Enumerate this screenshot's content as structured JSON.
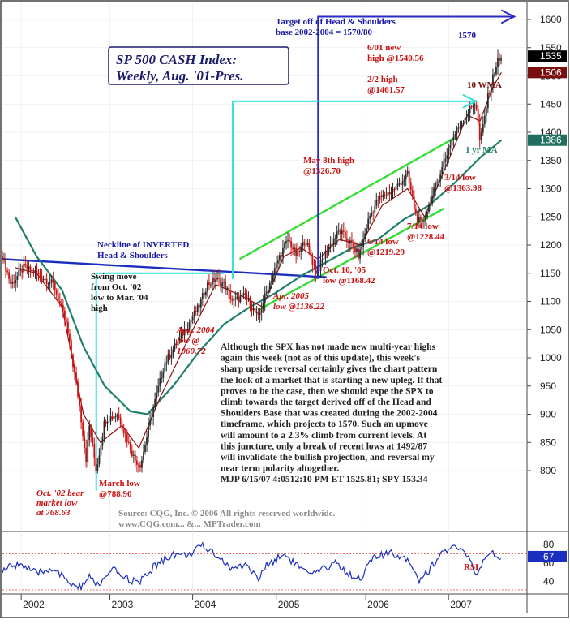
{
  "chart_data": {
    "type": "candlestick",
    "title": "SP 500 CASH Index:",
    "subtitle": "Weekly, Aug. '01-Pres.",
    "x_tick_labels": [
      "2002",
      "2003",
      "2004",
      "2005",
      "2006",
      "2007"
    ],
    "ylim": [
      750,
      1620
    ],
    "y_ticks": [
      800,
      850,
      900,
      950,
      1000,
      1050,
      1100,
      1150,
      1200,
      1250,
      1300,
      1350,
      1400,
      1450,
      1500,
      1550,
      1600
    ],
    "price_tags": [
      {
        "label": "1535",
        "value": 1535,
        "color": "#000000"
      },
      {
        "label": "1506",
        "value": 1506,
        "color": "#7a0f0f"
      },
      {
        "label": "1386",
        "value": 1386,
        "color": "#1f6f60"
      }
    ],
    "price_anchors": [
      [
        2001.6,
        1180
      ],
      [
        2001.7,
        1130
      ],
      [
        2001.85,
        1160
      ],
      [
        2002.0,
        1150
      ],
      [
        2002.2,
        1130
      ],
      [
        2002.35,
        1060
      ],
      [
        2002.5,
        920
      ],
      [
        2002.58,
        820
      ],
      [
        2002.62,
        880
      ],
      [
        2002.7,
        800
      ],
      [
        2002.8,
        890
      ],
      [
        2002.95,
        900
      ],
      [
        2003.15,
        820
      ],
      [
        2003.22,
        810
      ],
      [
        2003.35,
        900
      ],
      [
        2003.5,
        990
      ],
      [
        2003.7,
        1040
      ],
      [
        2003.9,
        1090
      ],
      [
        2004.0,
        1130
      ],
      [
        2004.1,
        1140
      ],
      [
        2004.2,
        1130
      ],
      [
        2004.3,
        1100
      ],
      [
        2004.45,
        1110
      ],
      [
        2004.6,
        1070
      ],
      [
        2004.68,
        1110
      ],
      [
        2004.85,
        1180
      ],
      [
        2004.95,
        1210
      ],
      [
        2005.05,
        1180
      ],
      [
        2005.15,
        1210
      ],
      [
        2005.28,
        1150
      ],
      [
        2005.4,
        1190
      ],
      [
        2005.55,
        1225
      ],
      [
        2005.7,
        1200
      ],
      [
        2005.78,
        1180
      ],
      [
        2005.9,
        1250
      ],
      [
        2006.0,
        1280
      ],
      [
        2006.2,
        1300
      ],
      [
        2006.35,
        1325
      ],
      [
        2006.45,
        1250
      ],
      [
        2006.52,
        1235
      ],
      [
        2006.6,
        1270
      ],
      [
        2006.75,
        1335
      ],
      [
        2006.85,
        1380
      ],
      [
        2006.95,
        1410
      ],
      [
        2007.1,
        1445
      ],
      [
        2007.15,
        1455
      ],
      [
        2007.2,
        1380
      ],
      [
        2007.3,
        1470
      ],
      [
        2007.4,
        1525
      ],
      [
        2007.45,
        1530
      ]
    ],
    "wma10_anchors": [
      [
        2001.75,
        1160
      ],
      [
        2002.0,
        1150
      ],
      [
        2002.3,
        1090
      ],
      [
        2002.55,
        900
      ],
      [
        2002.75,
        850
      ],
      [
        2003.0,
        880
      ],
      [
        2003.2,
        840
      ],
      [
        2003.45,
        930
      ],
      [
        2003.8,
        1040
      ],
      [
        2004.1,
        1130
      ],
      [
        2004.4,
        1110
      ],
      [
        2004.65,
        1090
      ],
      [
        2004.9,
        1180
      ],
      [
        2005.1,
        1195
      ],
      [
        2005.3,
        1175
      ],
      [
        2005.55,
        1210
      ],
      [
        2005.8,
        1200
      ],
      [
        2006.05,
        1270
      ],
      [
        2006.35,
        1300
      ],
      [
        2006.55,
        1250
      ],
      [
        2006.8,
        1340
      ],
      [
        2007.05,
        1430
      ],
      [
        2007.2,
        1420
      ],
      [
        2007.35,
        1480
      ],
      [
        2007.45,
        1506
      ]
    ],
    "ma1yr_anchors": [
      [
        2001.75,
        1250
      ],
      [
        2002.0,
        1180
      ],
      [
        2002.3,
        1120
      ],
      [
        2002.55,
        1020
      ],
      [
        2002.8,
        950
      ],
      [
        2003.1,
        905
      ],
      [
        2003.3,
        900
      ],
      [
        2003.6,
        950
      ],
      [
        2003.9,
        1010
      ],
      [
        2004.2,
        1060
      ],
      [
        2004.5,
        1090
      ],
      [
        2004.8,
        1115
      ],
      [
        2005.1,
        1145
      ],
      [
        2005.4,
        1170
      ],
      [
        2005.7,
        1195
      ],
      [
        2006.0,
        1210
      ],
      [
        2006.3,
        1245
      ],
      [
        2006.6,
        1270
      ],
      [
        2006.9,
        1310
      ],
      [
        2007.2,
        1355
      ],
      [
        2007.45,
        1386
      ]
    ],
    "rsi": {
      "label": "RSI",
      "ylim": [
        30,
        88
      ],
      "y_ticks": [
        80,
        60,
        40
      ],
      "value_tag": {
        "label": "67",
        "value": 67
      },
      "anchors": [
        [
          2001.6,
          52
        ],
        [
          2001.8,
          60
        ],
        [
          2002.0,
          48
        ],
        [
          2002.2,
          55
        ],
        [
          2002.35,
          40
        ],
        [
          2002.5,
          33
        ],
        [
          2002.62,
          44
        ],
        [
          2002.72,
          36
        ],
        [
          2002.9,
          52
        ],
        [
          2003.05,
          44
        ],
        [
          2003.2,
          38
        ],
        [
          2003.4,
          58
        ],
        [
          2003.6,
          70
        ],
        [
          2003.75,
          68
        ],
        [
          2003.95,
          78
        ],
        [
          2004.1,
          70
        ],
        [
          2004.3,
          52
        ],
        [
          2004.45,
          60
        ],
        [
          2004.6,
          42
        ],
        [
          2004.7,
          58
        ],
        [
          2004.9,
          70
        ],
        [
          2005.05,
          58
        ],
        [
          2005.2,
          46
        ],
        [
          2005.35,
          52
        ],
        [
          2005.5,
          62
        ],
        [
          2005.65,
          48
        ],
        [
          2005.8,
          44
        ],
        [
          2005.95,
          66
        ],
        [
          2006.15,
          70
        ],
        [
          2006.35,
          66
        ],
        [
          2006.48,
          42
        ],
        [
          2006.6,
          52
        ],
        [
          2006.75,
          72
        ],
        [
          2006.9,
          76
        ],
        [
          2007.05,
          70
        ],
        [
          2007.15,
          45
        ],
        [
          2007.25,
          62
        ],
        [
          2007.35,
          70
        ],
        [
          2007.45,
          67
        ]
      ]
    },
    "trendlines": [
      {
        "name": "upper-channel",
        "color": "#33dd33",
        "from": [
          2004.38,
          1175
        ],
        "to": [
          2006.9,
          1390
        ]
      },
      {
        "name": "lower-channel",
        "color": "#33dd33",
        "from": [
          2004.6,
          1085
        ],
        "to": [
          2006.78,
          1265
        ]
      },
      {
        "name": "neckline",
        "color": "#1a2fc0",
        "from": [
          2001.6,
          1175
        ],
        "to": [
          2005.4,
          1143
        ]
      }
    ],
    "swing_box": {
      "from": [
        2002.7,
        1150
      ],
      "to": [
        2004.2,
        1150
      ],
      "bottom": 765
    },
    "target_arrow_upper": {
      "x0": 2005.3,
      "y0": 1140,
      "y1": 1605,
      "x1": 2007.6
    },
    "target_arrow_lower": {
      "x0": 2004.3,
      "y0": 1140,
      "y1": 1455,
      "x1": 2007.15
    },
    "annotations": {
      "target_line1": "Target off of Head & Shoulders",
      "target_line2": "base 2002-2004 = 1570/80",
      "target_value": "1570",
      "neckline_line1": "Neckline of INVERTED",
      "neckline_line2": "Head & Shoulders",
      "swing_line1": "Swing move",
      "swing_line2": "from Oct. '02",
      "swing_line3": "low to Mar. '04",
      "swing_line4": "high",
      "high_0601_line1": "6/01 new",
      "high_0601_line2": "high @1540.56",
      "high_0202_line1": "2/2 high",
      "high_0202_line2": "@1461.57",
      "wma_label": "10 WMA",
      "ma_label": "1 yr MA",
      "low_0314_line1": "3/14 low",
      "low_0314_line2": "@1363.98",
      "may8_line1": "May 8th high",
      "may8_line2": "@1326.70",
      "low_0714_line1": "7/14 low",
      "low_0714_line2": "@1228.44",
      "low_0614_line1": "6/14 low",
      "low_0614_line2": "@1219.29",
      "oct05_line1": "Oct. 10, '05",
      "oct05_line2": "low  @1168.42",
      "apr05_line1": "Apr. 2005",
      "apr05_line2": "low @1136.22",
      "aug04_line1": "Aug. 2004",
      "aug04_line2": "low @",
      "aug04_line3": "1060.72",
      "march_line1": "March low",
      "march_line2": "@788.90",
      "oct02_line1": "Oct. '02 bear",
      "oct02_line2": "market low",
      "oct02_line3": "at 768.63"
    },
    "commentary": [
      "Although the SPX has not made new multi-year highs",
      "again this week (not as of this update), this week's",
      "sharp upside reversal certainly gives the chart pattern",
      "the look of a market that is starting a new upleg. If that",
      "proves to be the case, then we should expe the SPX to",
      "climb towards the target derived off of the Head and",
      "Shoulders Base that was created during the 2002-2004",
      "timeframe, which projects to 1570. Such an upmove",
      "will amount to a 2.3% climb from current levels. At",
      "this juncture, only a break of recent lows at 1492/87",
      "will invalidate the bullish projection, and reversal my",
      "near term polarity altogether.",
      "MJP 6/15/07  4:0512:10 PM ET  1525.81; SPY 153.34"
    ],
    "source_line1": "Source: CQG, Inc. © 2006 All rights reserved worldwide.",
    "source_line2": "www.CQG.com... &... MPTrader.com"
  }
}
